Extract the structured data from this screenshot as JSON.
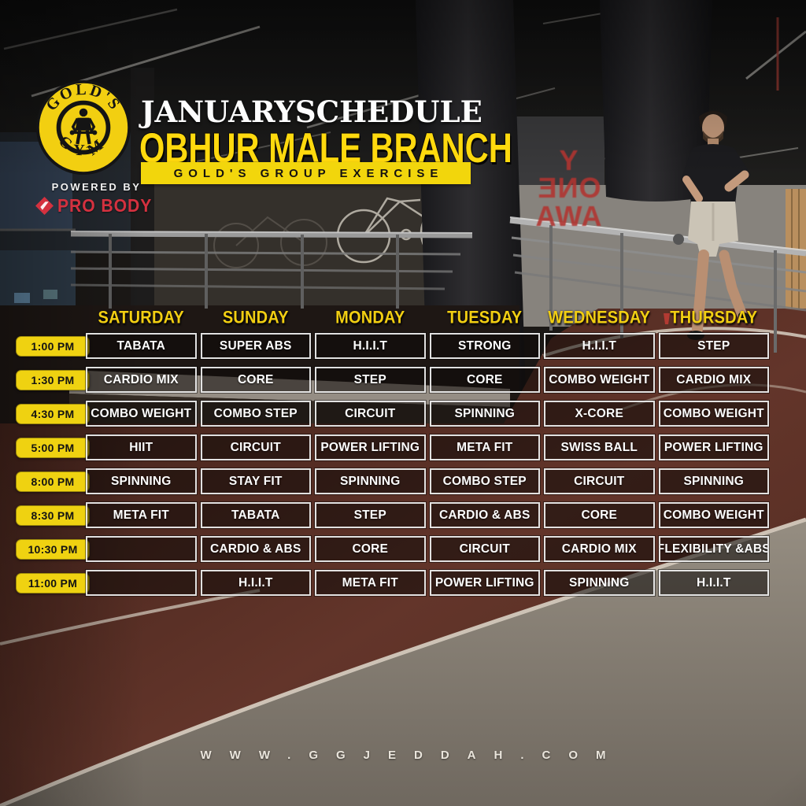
{
  "header": {
    "logo": {
      "top_text": "GOLD'S",
      "bottom_text": "GYM"
    },
    "title": "JANUARYSCHEDULE",
    "subtitle": "OBHUR MALE BRANCH",
    "banner": "GOLD'S GROUP EXERCISE",
    "powered_by_label": "POWERED BY",
    "powered_by_brand": "PRO BODY"
  },
  "wall_decal": {
    "lines": [
      "Y",
      "ONE",
      "AWA"
    ],
    "mirrored_line": 1
  },
  "schedule": {
    "days": [
      "SATURDAY",
      "SUNDAY",
      "MONDAY",
      "TUESDAY",
      "WEDNESDAY",
      "THURSDAY"
    ],
    "rows": [
      {
        "time": "1:00 PM",
        "classes": [
          "TABATA",
          "SUPER ABS",
          "H.I.I.T",
          "STRONG",
          "H.I.I.T",
          "STEP"
        ]
      },
      {
        "time": "1:30 PM",
        "classes": [
          "CARDIO MIX",
          "CORE",
          "STEP",
          "CORE",
          "COMBO WEIGHT",
          "CARDIO MIX"
        ]
      },
      {
        "time": "4:30 PM",
        "classes": [
          "COMBO WEIGHT",
          "COMBO STEP",
          "CIRCUIT",
          "SPINNING",
          "X-CORE",
          "COMBO WEIGHT"
        ]
      },
      {
        "time": "5:00 PM",
        "classes": [
          "HIIT",
          "CIRCUIT",
          "POWER LIFTING",
          "META FIT",
          "SWISS BALL",
          "POWER LIFTING"
        ]
      },
      {
        "time": "8:00 PM",
        "classes": [
          "SPINNING",
          "STAY FIT",
          "SPINNING",
          "COMBO STEP",
          "CIRCUIT",
          "SPINNING"
        ]
      },
      {
        "time": "8:30 PM",
        "classes": [
          "META FIT",
          "TABATA",
          "STEP",
          "CARDIO & ABS",
          "CORE",
          "COMBO WEIGHT"
        ]
      },
      {
        "time": "10:30 PM",
        "classes": [
          "",
          "CARDIO & ABS",
          "CORE",
          "CIRCUIT",
          "CARDIO MIX",
          "FLEXIBILITY &ABS"
        ]
      },
      {
        "time": "11:00 PM",
        "classes": [
          "",
          "H.I.I.T",
          "META FIT",
          "POWER LIFTING",
          "SPINNING",
          "H.I.I.T"
        ]
      }
    ]
  },
  "footer": {
    "website": "WWW.GGJEDDAH.COM"
  },
  "colors": {
    "brand_yellow": "#f2d211",
    "day_label_yellow": "#f1ce12",
    "subtitle_yellow": "#ffd90e",
    "brand_red": "#d4313f",
    "cell_border": "#f2f2f2",
    "track_maroon": "#5c3024",
    "path_grey": "#8d857a"
  }
}
